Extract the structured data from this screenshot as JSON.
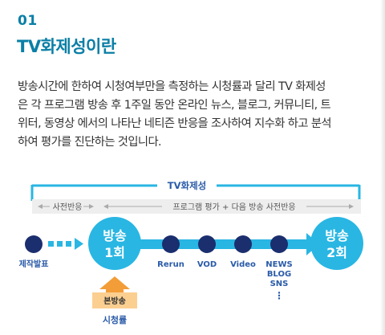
{
  "section": {
    "number": "01",
    "title": "TV화제성이란"
  },
  "description": {
    "lines": [
      "방송시간에 한하여 시청여부만을 측정하는 시청률과 달리 TV 화제성",
      "은 각 프로그램 방송 후 1주일 동안 온라인 뉴스, 블로그, 커뮤니티, 트",
      "위터, 동영상 에서의 나타난 네티즌 반응을 조사하여 지수화 하고 분석",
      "하여 평가를 진단하는 것입니다."
    ]
  },
  "diagram": {
    "top_label": "TV화제성",
    "pre_label": "사전반응",
    "post_label": "프로그램 평가 + 다음 방송 사전반응",
    "start_node": "제작발표",
    "broadcast1": [
      "방송",
      "1회"
    ],
    "broadcast2": [
      "방송",
      "2회"
    ],
    "nodes": [
      "Rerun",
      "VOD",
      "Video"
    ],
    "news_node": [
      "NEWS",
      "BLOG",
      "SNS"
    ],
    "ellipsis": "⋮",
    "main_broadcast": "본방송",
    "ratings": "시청률",
    "colors": {
      "cyan": "#29b6e3",
      "navy": "#1b2e6e",
      "blue_text": "#2a5ba8",
      "orange": "#f39d38",
      "orange_light": "#fbcf90",
      "gray_band": "#eeeeee"
    }
  }
}
